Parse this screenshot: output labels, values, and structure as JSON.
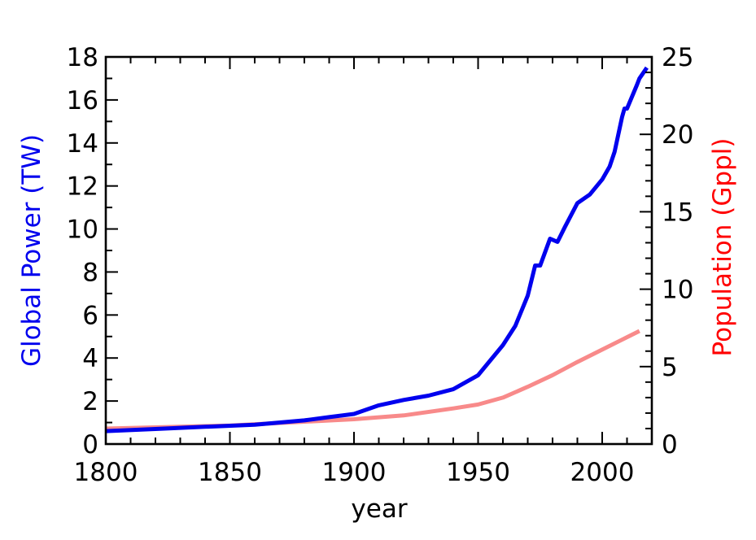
{
  "chart_data": {
    "type": "line",
    "title": "",
    "xlabel": "year",
    "ylabel_left": "Global Power (TW)",
    "ylabel_right": "Population (Gppl)",
    "xlim": [
      1800,
      2020
    ],
    "ylim_left": [
      0,
      18
    ],
    "ylim_right": [
      0,
      25
    ],
    "x_ticks": [
      1800,
      1850,
      1900,
      1950,
      2000
    ],
    "y_ticks_left": [
      0,
      2,
      4,
      6,
      8,
      10,
      12,
      14,
      16,
      18
    ],
    "y_ticks_right": [
      0,
      5,
      10,
      15,
      20,
      25
    ],
    "grid": false,
    "legend": "none",
    "colors": {
      "power": "#0000ee",
      "population": "#f88a8a",
      "left_axis_text": "#0000ee",
      "right_axis_text": "#ff0000"
    },
    "series": [
      {
        "axis": "left",
        "x": [
          1800,
          1820,
          1840,
          1860,
          1880,
          1890,
          1900,
          1910,
          1920,
          1930,
          1940,
          1950,
          1960,
          1965,
          1970,
          1973,
          1975,
          1979,
          1982,
          1985,
          1990,
          1995,
          2000,
          2003,
          2005,
          2008,
          2009,
          2010,
          2014,
          2015,
          2018
        ],
        "y": [
          0.6,
          0.7,
          0.8,
          0.9,
          1.1,
          1.25,
          1.4,
          1.8,
          2.05,
          2.25,
          2.55,
          3.2,
          4.6,
          5.5,
          6.9,
          8.3,
          8.3,
          9.55,
          9.4,
          10.1,
          11.2,
          11.6,
          12.3,
          12.9,
          13.6,
          15.2,
          15.6,
          15.6,
          16.7,
          17.0,
          17.5
        ]
      },
      {
        "axis": "right",
        "x": [
          1800,
          1850,
          1900,
          1920,
          1940,
          1950,
          1960,
          1970,
          1980,
          1990,
          2000,
          2010,
          2015
        ],
        "y": [
          1.0,
          1.2,
          1.6,
          1.85,
          2.3,
          2.55,
          3.0,
          3.7,
          4.45,
          5.3,
          6.1,
          6.9,
          7.3
        ]
      }
    ]
  }
}
